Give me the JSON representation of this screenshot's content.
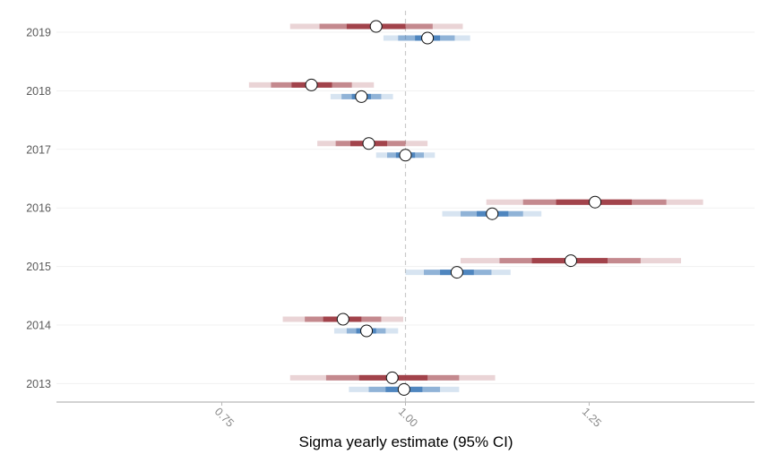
{
  "chart_data": {
    "type": "interval",
    "title": "",
    "xlabel": "Sigma yearly estimate (95% CI)",
    "ylabel": "",
    "xlim": [
      0.525,
      1.475
    ],
    "x_ticks": [
      0.75,
      1.0,
      1.25
    ],
    "x_tick_labels": [
      "0.75",
      "1.00",
      "1.25"
    ],
    "reference_line": 1.0,
    "grid": "horizontal-major",
    "legend": "none",
    "categories": [
      "2019",
      "2018",
      "2017",
      "2016",
      "2015",
      "2014",
      "2013"
    ],
    "series": [
      {
        "color": "#9e3d45",
        "points": [
          {
            "year": "2019",
            "estimate": 0.96,
            "intervals": [
              [
                0.843,
                1.078
              ],
              [
                0.883,
                1.037
              ],
              [
                0.92,
                1.0
              ]
            ]
          },
          {
            "year": "2018",
            "estimate": 0.872,
            "intervals": [
              [
                0.787,
                0.957
              ],
              [
                0.817,
                0.927
              ],
              [
                0.845,
                0.9
              ]
            ]
          },
          {
            "year": "2017",
            "estimate": 0.95,
            "intervals": [
              [
                0.88,
                1.03
              ],
              [
                0.905,
                1.0
              ],
              [
                0.925,
                0.975
              ]
            ]
          },
          {
            "year": "2016",
            "estimate": 1.258,
            "intervals": [
              [
                1.11,
                1.405
              ],
              [
                1.16,
                1.355
              ],
              [
                1.205,
                1.308
              ]
            ]
          },
          {
            "year": "2015",
            "estimate": 1.225,
            "intervals": [
              [
                1.075,
                1.375
              ],
              [
                1.128,
                1.32
              ],
              [
                1.172,
                1.275
              ]
            ]
          },
          {
            "year": "2014",
            "estimate": 0.915,
            "intervals": [
              [
                0.833,
                0.997
              ],
              [
                0.863,
                0.967
              ],
              [
                0.888,
                0.94
              ]
            ]
          },
          {
            "year": "2013",
            "estimate": 0.982,
            "intervals": [
              [
                0.843,
                1.122
              ],
              [
                0.892,
                1.073
              ],
              [
                0.937,
                1.03
              ]
            ]
          }
        ]
      },
      {
        "color": "#4a82bd",
        "points": [
          {
            "year": "2019",
            "estimate": 1.03,
            "intervals": [
              [
                0.97,
                1.088
              ],
              [
                0.99,
                1.067
              ],
              [
                1.013,
                1.047
              ]
            ]
          },
          {
            "year": "2018",
            "estimate": 0.94,
            "intervals": [
              [
                0.898,
                0.983
              ],
              [
                0.913,
                0.967
              ],
              [
                0.927,
                0.953
              ]
            ]
          },
          {
            "year": "2017",
            "estimate": 1.0,
            "intervals": [
              [
                0.96,
                1.04
              ],
              [
                0.975,
                1.025
              ],
              [
                0.987,
                1.013
              ]
            ]
          },
          {
            "year": "2016",
            "estimate": 1.118,
            "intervals": [
              [
                1.05,
                1.185
              ],
              [
                1.075,
                1.16
              ],
              [
                1.097,
                1.14
              ]
            ]
          },
          {
            "year": "2015",
            "estimate": 1.07,
            "intervals": [
              [
                1.0,
                1.143
              ],
              [
                1.025,
                1.117
              ],
              [
                1.047,
                1.093
              ]
            ]
          },
          {
            "year": "2014",
            "estimate": 0.947,
            "intervals": [
              [
                0.903,
                0.99
              ],
              [
                0.92,
                0.973
              ],
              [
                0.933,
                0.96
              ]
            ]
          },
          {
            "year": "2013",
            "estimate": 0.998,
            "intervals": [
              [
                0.923,
                1.073
              ],
              [
                0.95,
                1.047
              ],
              [
                0.973,
                1.023
              ]
            ]
          }
        ]
      }
    ]
  }
}
